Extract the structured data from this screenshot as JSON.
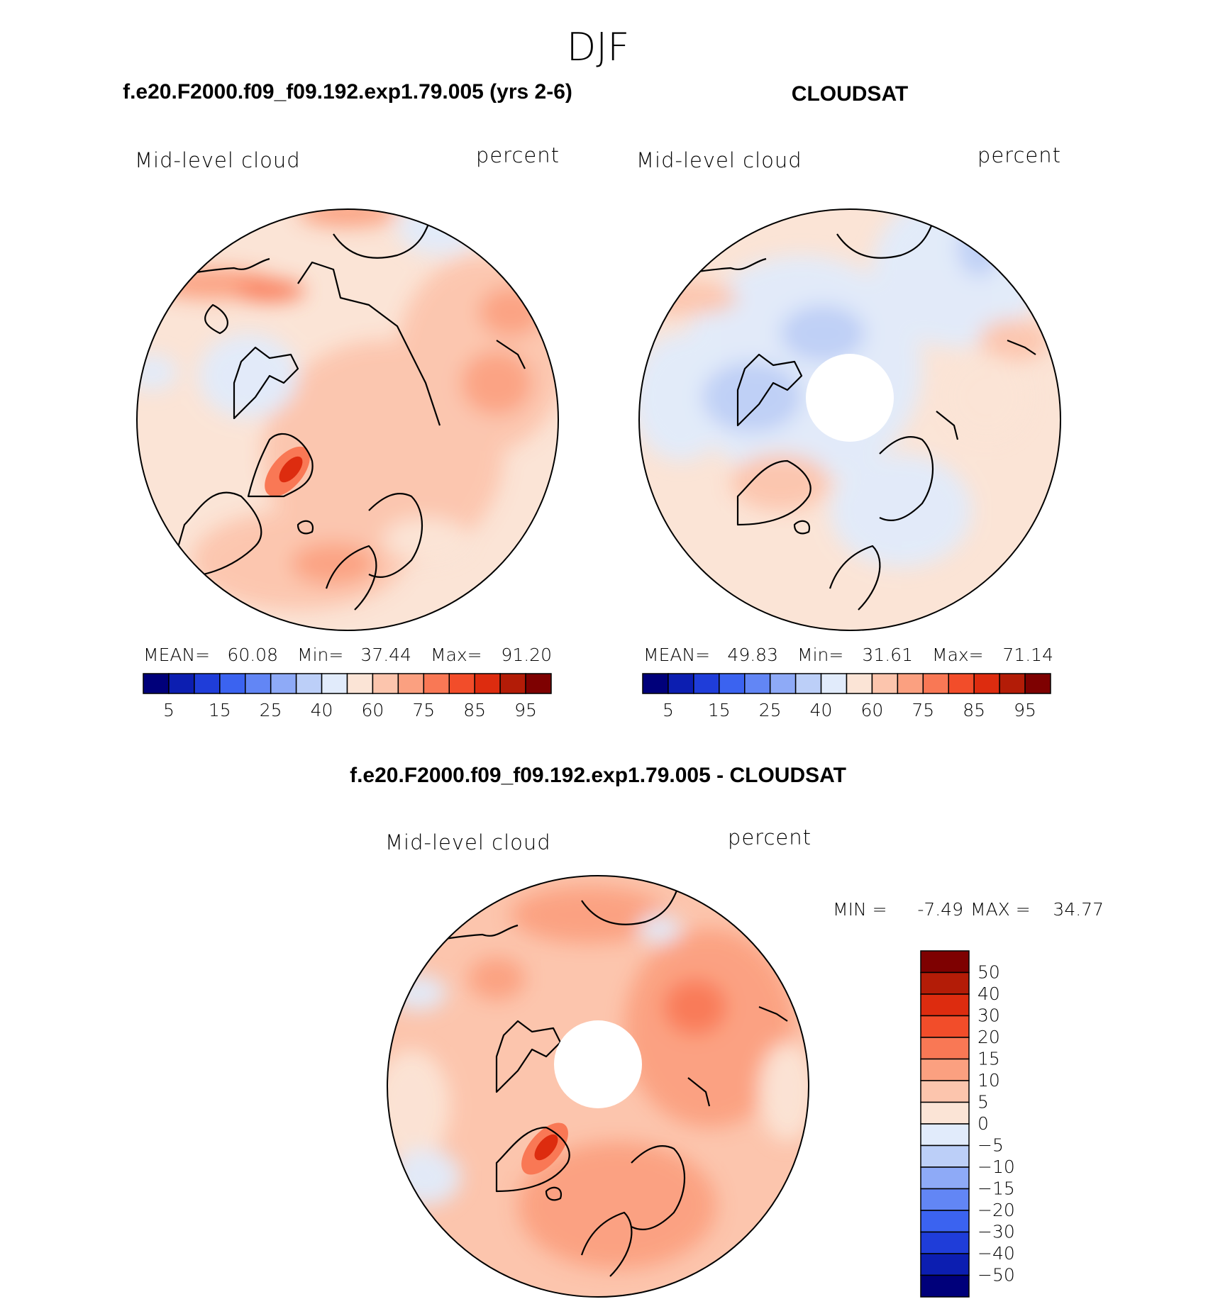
{
  "chart_data": [
    {
      "type": "heatmap",
      "projection": "north-polar-stereographic",
      "season": "DJF",
      "title": "f.e20.F2000.f09_f09.192.exp1.79.005 (yrs 2-6)",
      "left_label": "Mid-level cloud",
      "right_label": "percent",
      "stats": {
        "mean_label": "MEAN=",
        "mean": "60.08",
        "min_label": "Min=",
        "min": "37.44",
        "max_label": "Max=",
        "max": "91.20"
      },
      "colorbar_ticks": [
        "5",
        "15",
        "25",
        "40",
        "60",
        "75",
        "85",
        "95"
      ],
      "levels": [
        5,
        10,
        15,
        20,
        25,
        30,
        40,
        50,
        60,
        70,
        75,
        80,
        85,
        90,
        95
      ],
      "field_samples": [
        {
          "lon": 200,
          "lat": 62,
          "value": 72
        },
        {
          "lon": 310,
          "lat": 70,
          "value": 82
        },
        {
          "lon": 20,
          "lat": 60,
          "value": 70
        },
        {
          "lon": 120,
          "lat": 55,
          "value": 68
        },
        {
          "lon": 90,
          "lat": 75,
          "value": 62
        },
        {
          "lon": 250,
          "lat": 75,
          "value": 55
        },
        {
          "lon": 160,
          "lat": 80,
          "value": 63
        }
      ]
    },
    {
      "type": "heatmap",
      "projection": "north-polar-stereographic",
      "title": "CLOUDSAT",
      "left_label": "Mid-level cloud",
      "right_label": "percent",
      "stats": {
        "mean_label": "MEAN=",
        "mean": "49.83",
        "min_label": "Min=",
        "min": "31.61",
        "max_label": "Max=",
        "max": "71.14"
      },
      "colorbar_ticks": [
        "5",
        "15",
        "25",
        "40",
        "60",
        "75",
        "85",
        "95"
      ],
      "levels": [
        5,
        10,
        15,
        20,
        25,
        30,
        40,
        50,
        60,
        70,
        75,
        80,
        85,
        90,
        95
      ],
      "missing_data_region": "polar cap north of ~82N",
      "field_samples": [
        {
          "lon": 200,
          "lat": 62,
          "value": 52
        },
        {
          "lon": 310,
          "lat": 70,
          "value": 55
        },
        {
          "lon": 20,
          "lat": 60,
          "value": 52
        },
        {
          "lon": 120,
          "lat": 55,
          "value": 56
        },
        {
          "lon": 90,
          "lat": 75,
          "value": 45
        },
        {
          "lon": 250,
          "lat": 75,
          "value": 40
        },
        {
          "lon": 160,
          "lat": 80,
          "value": 45
        }
      ]
    },
    {
      "type": "heatmap",
      "projection": "north-polar-stereographic",
      "title": "f.e20.F2000.f09_f09.192.exp1.79.005 - CLOUDSAT",
      "left_label": "Mid-level cloud",
      "right_label": "percent",
      "stats": {
        "min_label": "MIN =",
        "min": "-7.49",
        "max_label": "MAX =",
        "max": "34.77"
      },
      "colorbar_ticks": [
        "50",
        "40",
        "30",
        "20",
        "15",
        "10",
        "5",
        "0",
        "−5",
        "−10",
        "−15",
        "−20",
        "−30",
        "−40",
        "−50"
      ],
      "levels": [
        -50,
        -40,
        -30,
        -20,
        -15,
        -10,
        -5,
        0,
        5,
        10,
        15,
        20,
        30,
        40,
        50
      ],
      "missing_data_region": "polar cap north of ~82N",
      "field_samples": [
        {
          "lon": 200,
          "lat": 62,
          "value": 18
        },
        {
          "lon": 310,
          "lat": 70,
          "value": 27
        },
        {
          "lon": 20,
          "lat": 60,
          "value": 18
        },
        {
          "lon": 120,
          "lat": 55,
          "value": 12
        },
        {
          "lon": 90,
          "lat": 75,
          "value": 17
        },
        {
          "lon": 250,
          "lat": 75,
          "value": 14
        },
        {
          "lon": 160,
          "lat": 80,
          "value": 18
        }
      ]
    }
  ],
  "colors": {
    "ramp16": [
      "#00007a",
      "#0c1eb1",
      "#1f3dd9",
      "#3b63f0",
      "#6286f5",
      "#8eaaf7",
      "#bccff8",
      "#e1ebfb",
      "#fbe4d6",
      "#fcc5ad",
      "#fba080",
      "#f97855",
      "#f24d2a",
      "#dd2c0f",
      "#b31c07",
      "#7e0101"
    ],
    "land": "#000000"
  }
}
